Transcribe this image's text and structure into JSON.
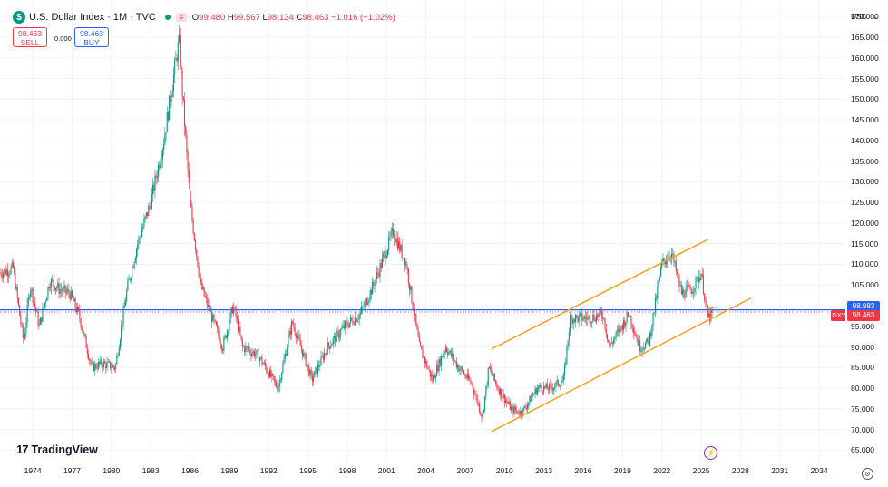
{
  "legend": {
    "title": "U.S. Dollar Index · 1M · TVC",
    "open_key": "O",
    "open": "99.480",
    "high_key": "H",
    "high": "99.567",
    "low_key": "L",
    "low": "98.134",
    "close_key": "C",
    "close": "98.463",
    "change": "−1.016 (−1.02%)"
  },
  "trade": {
    "sell_price": "98.463",
    "sell_label": "SELL",
    "spread": "0.000",
    "buy_price": "98.463",
    "buy_label": "BUY"
  },
  "price_axis": {
    "currency": "USD"
  },
  "branding": {
    "logo_text": "TradingView"
  },
  "colors": {
    "up": "#089981",
    "down": "#f23645",
    "channel": "#f7a21b",
    "level": "#2962ff"
  },
  "icons": [
    "dollar-icon",
    "status-dot-icon",
    "ohlc-toggle-icon",
    "chevron-down-icon",
    "tradingview-logo-icon",
    "flash-icon",
    "settings-icon"
  ],
  "chart_data": {
    "type": "candlestick",
    "title": "U.S. Dollar Index · 1M · TVC",
    "ylim": [
      62,
      174
    ],
    "xlim": [
      1971.5,
      2036
    ],
    "y_ticks": [
      "65.000",
      "70.000",
      "75.000",
      "80.000",
      "85.000",
      "90.000",
      "95.000",
      "100.000",
      "105.000",
      "110.000",
      "115.000",
      "120.000",
      "125.000",
      "130.000",
      "135.000",
      "140.000",
      "145.000",
      "150.000",
      "155.000",
      "160.000",
      "165.000",
      "170.000"
    ],
    "y_tick_values": [
      65,
      70,
      75,
      80,
      85,
      90,
      95,
      100,
      105,
      110,
      115,
      120,
      125,
      130,
      135,
      140,
      145,
      150,
      155,
      160,
      165,
      170
    ],
    "x_ticks": [
      "1974",
      "1977",
      "1980",
      "1983",
      "1986",
      "1989",
      "1992",
      "1995",
      "1998",
      "2001",
      "2004",
      "2007",
      "2010",
      "2013",
      "2016",
      "2019",
      "2022",
      "2025",
      "2028",
      "2031",
      "2034"
    ],
    "x_tick_values": [
      1974,
      1977,
      1980,
      1983,
      1986,
      1989,
      1992,
      1995,
      1998,
      2001,
      2004,
      2007,
      2010,
      2013,
      2016,
      2019,
      2022,
      2025,
      2028,
      2031,
      2034
    ],
    "key_points": {
      "x": [
        1971.5,
        1972.5,
        1973.3,
        1973.8,
        1974.5,
        1975.3,
        1976,
        1976.8,
        1977.5,
        1978.5,
        1979.3,
        1980.3,
        1981.2,
        1982,
        1983,
        1984,
        1985.15,
        1986,
        1986.8,
        1987.8,
        1988.5,
        1989.3,
        1990,
        1991.2,
        1992.7,
        1993.8,
        1995.3,
        1996.5,
        1997.8,
        1999,
        2000,
        2001.5,
        2002.5,
        2003.5,
        2004.5,
        2005.5,
        2006.5,
        2007.5,
        2008.3,
        2008.8,
        2009.5,
        2010.5,
        2011.3,
        2012.5,
        2013.5,
        2014.5,
        2015,
        2016.5,
        2017.5,
        2018,
        2019.5,
        2020.3,
        2021,
        2022,
        2022.7,
        2023.5,
        2024.3,
        2025,
        2025.5,
        2026
      ],
      "y": [
        108,
        109,
        91,
        105,
        95,
        106,
        104,
        103,
        98,
        85,
        86,
        85,
        104,
        115,
        125,
        140,
        164,
        125,
        105,
        96,
        90,
        100,
        90,
        88,
        80,
        96,
        82,
        90,
        95,
        98,
        105,
        118,
        110,
        90,
        82,
        90,
        85,
        81,
        73,
        85,
        80,
        75,
        74,
        80,
        80,
        82,
        97,
        97,
        98,
        90,
        98,
        90,
        91,
        110,
        113,
        103,
        104,
        108,
        97,
        98
      ]
    },
    "series": [
      {
        "name": "Level",
        "kind": "horizontal_line",
        "value": 98.983
      },
      {
        "name": "Channel upper",
        "kind": "trendline",
        "x": [
          2009,
          2025.5
        ],
        "y": [
          89.5,
          116
        ]
      },
      {
        "name": "Channel lower",
        "kind": "trendline",
        "x": [
          2009,
          2028.8
        ],
        "y": [
          69.5,
          101.8
        ]
      },
      {
        "name": "Channel projection",
        "kind": "trendline",
        "x": [
          2025.5,
          2026.2
        ],
        "y": [
          99.2,
          99.7
        ]
      }
    ],
    "price_labels": [
      {
        "label": "98.983",
        "value": 98.983,
        "color": "#2962ff"
      },
      {
        "label": "98.463",
        "value": 98.463,
        "color": "#f23645"
      }
    ],
    "symbol_tag": "DXY",
    "last_close": 98.463
  }
}
